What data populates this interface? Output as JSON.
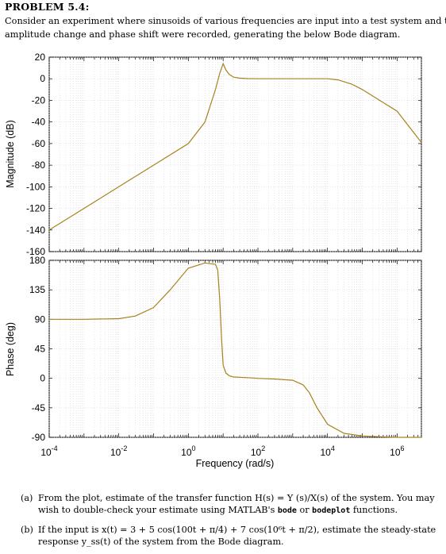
{
  "problem": {
    "heading": "PROBLEM 5.4:",
    "intro_line1": "Consider an experiment where sinusoids of various frequencies are input into a test system and the",
    "intro_line2": "amplitude change and phase shift were recorded, generating the below Bode diagram."
  },
  "chart_data": [
    {
      "type": "line",
      "title": "",
      "ylabel": "Magnitude (dB)",
      "xlabel": "",
      "x_scale": "log",
      "xlim": [
        0.0001,
        5000000
      ],
      "ylim": [
        -160,
        20
      ],
      "grid": true,
      "yticks": [
        "20",
        "0",
        "-20",
        "-40",
        "-60",
        "-80",
        "-100",
        "-120",
        "-140",
        "-160"
      ],
      "color": "#a8821e",
      "series": [
        {
          "x": [
            0.0001,
            0.001,
            0.01,
            0.1,
            1,
            3,
            6,
            8,
            10,
            12,
            15,
            20,
            30,
            50,
            100,
            1000,
            10000,
            20000,
            50000,
            100000,
            1000000,
            5000000
          ],
          "y": [
            -140,
            -120,
            -100,
            -80,
            -60,
            -40,
            -10,
            5,
            14,
            8,
            4,
            1.5,
            0.5,
            0.2,
            0,
            0,
            0,
            -1,
            -5,
            -10,
            -30,
            -59
          ]
        }
      ]
    },
    {
      "type": "line",
      "title": "",
      "ylabel": "Phase (deg)",
      "xlabel": "Frequency  (rad/s)",
      "x_scale": "log",
      "xlim": [
        0.0001,
        5000000
      ],
      "ylim": [
        -90,
        180
      ],
      "grid": true,
      "yticks": [
        "180",
        "135",
        "90",
        "45",
        "0",
        "-45",
        "-90"
      ],
      "xticks": [
        {
          "base": "10",
          "exp": "-4"
        },
        {
          "base": "10",
          "exp": "-2"
        },
        {
          "base": "10",
          "exp": "0"
        },
        {
          "base": "10",
          "exp": "2"
        },
        {
          "base": "10",
          "exp": "4"
        },
        {
          "base": "10",
          "exp": "6"
        }
      ],
      "color": "#a8821e",
      "series": [
        {
          "x": [
            0.0001,
            0.001,
            0.01,
            0.03,
            0.1,
            0.3,
            1,
            3,
            6,
            7,
            8,
            9,
            10,
            12,
            15,
            20,
            50,
            100,
            300,
            1000,
            2000,
            3000,
            5000,
            10000,
            30000,
            100000,
            300000,
            1000000,
            5000000
          ],
          "y": [
            90,
            90,
            91,
            95,
            108,
            135,
            168,
            176,
            174,
            165,
            120,
            60,
            20,
            8,
            4,
            2,
            1,
            0,
            -1,
            -3,
            -10,
            -22,
            -45,
            -70,
            -84,
            -88,
            -89,
            -90,
            -90
          ]
        }
      ]
    }
  ],
  "questions": {
    "a_label": "(a)",
    "a_line1": "From the plot, estimate of the transfer function H(s) = Y (s)/X(s) of the system. You may",
    "a_line2a": "wish to double-check your estimate using MATLAB's ",
    "a_code1": "bode",
    "a_line2b": " or ",
    "a_code2": "bodeplot",
    "a_line2c": " functions.",
    "b_label": "(b)",
    "b_line1": "If the input is x(t) = 3 + 5 cos(100t + π/4) + 7 cos(10⁶t + π/2), estimate the steady-state",
    "b_line2": "response y_ss(t) of the system from the Bode diagram."
  }
}
